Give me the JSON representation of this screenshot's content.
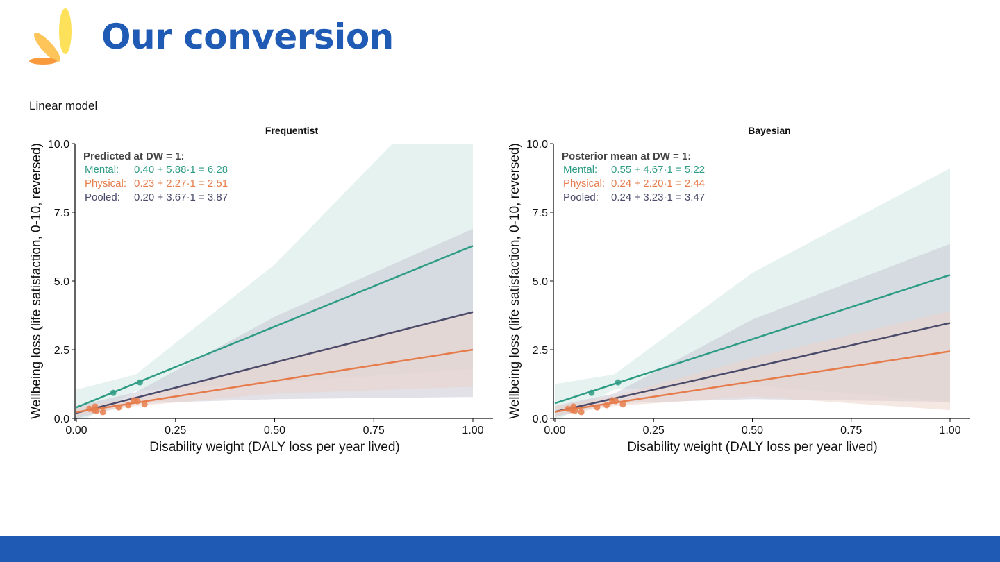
{
  "slide": {
    "title": "Our conversion",
    "subtitle": "Linear model",
    "brand_color": "#1f5bb5",
    "footer_color": "#1f5bb5"
  },
  "chart_data": [
    {
      "type": "line",
      "title": "Frequentist",
      "xlabel": "Disability weight (DALY loss per year lived)",
      "ylabel": "Wellbeing loss (life satisfaction, 0-10, reversed)",
      "xlim": [
        0,
        1.05
      ],
      "ylim": [
        0,
        10
      ],
      "xticks": [
        "0.00",
        "0.25",
        "0.50",
        "0.75",
        "1.00"
      ],
      "yticks": [
        "0.0",
        "2.5",
        "5.0",
        "7.5",
        "10.0"
      ],
      "grid": false,
      "annotation": {
        "heading": "Predicted at DW = 1:",
        "lines": [
          {
            "label": "Mental:",
            "formula": "0.40 + 5.88·1 = 6.28",
            "color": "#2e9c84"
          },
          {
            "label": "Physical:",
            "formula": "0.23 + 2.27·1 = 2.51",
            "color": "#e67c4c"
          },
          {
            "label": "Pooled:",
            "formula": "0.20 + 3.67·1 = 3.87",
            "color": "#4a4a6a"
          }
        ]
      },
      "series": [
        {
          "key": "mental",
          "color": "#2e9c84",
          "band_color": "#cfe8e2",
          "intercept": 0.4,
          "slope": 5.88,
          "band": {
            "x": [
              0,
              0.15,
              0.5,
              1
            ],
            "lower": [
              -0.2,
              1.0,
              1.3,
              1.8
            ],
            "upper": [
              1.05,
              1.6,
              5.6,
              13
            ]
          },
          "points": [
            [
              0.093,
              0.93
            ],
            [
              0.16,
              1.31
            ]
          ]
        },
        {
          "key": "pooled",
          "color": "#4a4a6a",
          "band_color": "#c9c9d4",
          "intercept": 0.2,
          "slope": 3.67,
          "band": {
            "x": [
              0,
              0.15,
              0.5,
              1
            ],
            "lower": [
              0.0,
              0.55,
              0.7,
              0.78
            ],
            "upper": [
              0.45,
              0.95,
              3.7,
              6.9
            ]
          },
          "points": []
        },
        {
          "key": "physical",
          "color": "#e67c4c",
          "band_color": "#ecd3cb",
          "intercept": 0.23,
          "slope": 2.27,
          "band": {
            "x": [
              0,
              0.15,
              0.5,
              1
            ],
            "lower": [
              0.1,
              0.45,
              0.9,
              1.15
            ],
            "upper": [
              0.4,
              0.75,
              2.1,
              3.9
            ]
          },
          "points": [
            [
              0.033,
              0.35
            ],
            [
              0.044,
              0.3
            ],
            [
              0.047,
              0.43
            ],
            [
              0.051,
              0.28
            ],
            [
              0.067,
              0.23
            ],
            [
              0.107,
              0.4
            ],
            [
              0.131,
              0.48
            ],
            [
              0.145,
              0.66
            ],
            [
              0.154,
              0.63
            ],
            [
              0.172,
              0.51
            ]
          ]
        }
      ]
    },
    {
      "type": "line",
      "title": "Bayesian",
      "xlabel": "Disability weight (DALY loss per year lived)",
      "ylabel": "Wellbeing loss (life satisfaction, 0-10, reversed)",
      "xlim": [
        0,
        1.05
      ],
      "ylim": [
        0,
        10
      ],
      "xticks": [
        "0.00",
        "0.25",
        "0.50",
        "0.75",
        "1.00"
      ],
      "yticks": [
        "0.0",
        "2.5",
        "5.0",
        "7.5",
        "10.0"
      ],
      "grid": false,
      "annotation": {
        "heading": "Posterior mean at DW = 1:",
        "lines": [
          {
            "label": "Mental:",
            "formula": "0.55 + 4.67·1 = 5.22",
            "color": "#2e9c84"
          },
          {
            "label": "Physical:",
            "formula": "0.24 + 2.20·1 = 2.44",
            "color": "#e67c4c"
          },
          {
            "label": "Pooled:",
            "formula": "0.24 + 3.23·1 = 3.47",
            "color": "#4a4a6a"
          }
        ]
      },
      "series": [
        {
          "key": "mental",
          "color": "#2e9c84",
          "band_color": "#cfe8e2",
          "intercept": 0.55,
          "slope": 4.67,
          "band": {
            "x": [
              0,
              0.15,
              0.5,
              1
            ],
            "lower": [
              -0.1,
              1.05,
              1.2,
              0.6
            ],
            "upper": [
              1.25,
              1.6,
              5.3,
              9.1
            ]
          },
          "points": [
            [
              0.093,
              0.93
            ],
            [
              0.16,
              1.31
            ]
          ]
        },
        {
          "key": "pooled",
          "color": "#4a4a6a",
          "band_color": "#c9c9d4",
          "intercept": 0.24,
          "slope": 3.23,
          "band": {
            "x": [
              0,
              0.15,
              0.5,
              1
            ],
            "lower": [
              0.05,
              0.55,
              0.7,
              0.6
            ],
            "upper": [
              0.45,
              0.9,
              3.6,
              6.35
            ]
          },
          "points": []
        },
        {
          "key": "physical",
          "color": "#e67c4c",
          "band_color": "#ecd3cb",
          "intercept": 0.24,
          "slope": 2.2,
          "band": {
            "x": [
              0,
              0.15,
              0.5,
              1
            ],
            "lower": [
              0.1,
              0.45,
              0.8,
              0.3
            ],
            "upper": [
              0.45,
              0.8,
              2.2,
              3.9
            ]
          },
          "points": [
            [
              0.033,
              0.35
            ],
            [
              0.044,
              0.3
            ],
            [
              0.047,
              0.43
            ],
            [
              0.051,
              0.28
            ],
            [
              0.067,
              0.23
            ],
            [
              0.107,
              0.4
            ],
            [
              0.131,
              0.48
            ],
            [
              0.145,
              0.66
            ],
            [
              0.154,
              0.63
            ],
            [
              0.172,
              0.51
            ]
          ]
        }
      ]
    }
  ]
}
